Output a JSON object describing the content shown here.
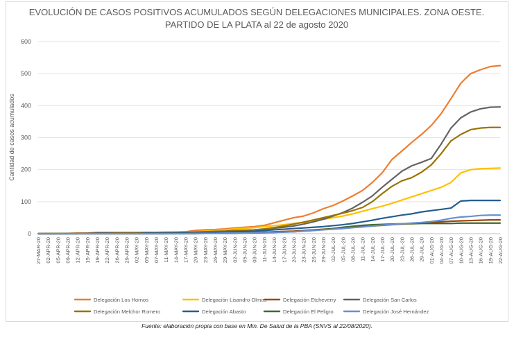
{
  "chart_data": {
    "type": "line",
    "title_lines": [
      "EVOLUCIÓN DE CASOS POSITIVOS ACUMULADOS SEGÚN DELEGACIONES MUNICIPALES. ZONA OESTE.",
      "PARTIDO DE LA PLATA al 22 de agosto 2020"
    ],
    "ylabel": "Cantidad de casos acumulados",
    "ylim": [
      0,
      600
    ],
    "yticks": [
      0,
      100,
      200,
      300,
      400,
      500,
      600
    ],
    "grid": "horizontal",
    "legend_position": "bottom",
    "x": [
      "27-MAR-20",
      "02-APR-20",
      "05-APR-20",
      "09-APR-20",
      "12-APR-20",
      "15-APR-20",
      "19-APR-20",
      "22-APR-20",
      "26-APR-20",
      "29-APR-20",
      "02-MAY-20",
      "05-MAY-20",
      "07-MAY-20",
      "11-MAY-20",
      "14-MAY-20",
      "17-MAY-20",
      "20-MAY-20",
      "23-MAY-20",
      "26-MAY-20",
      "29-MAY-20",
      "02-JUN-20",
      "05-JUN-20",
      "08-JUN-20",
      "11-JUN-20",
      "14-JUN-20",
      "17-JUN-20",
      "20-JUN-20",
      "23-JUN-20",
      "26-JUN-20",
      "29-JUN-20",
      "02-JUL-20",
      "05-JUL-20",
      "08-JUL-20",
      "11-JUL-20",
      "14-JUL-20",
      "17-JUL-20",
      "20-JUL-20",
      "23-JUL-20",
      "26-JUL-20",
      "29-JUL-20",
      "01-AUG-20",
      "04-AUG-20",
      "07-AUG-20",
      "10-AUG-20",
      "13-AUG-20",
      "16-AUG-20",
      "19-AUG-20",
      "22-AUG-20"
    ],
    "series": [
      {
        "name": "Delegación Los Hornos",
        "color": "#ed7d31",
        "values": [
          0,
          1,
          1,
          1,
          2,
          2,
          4,
          4,
          4,
          4,
          4,
          4,
          4,
          5,
          5,
          6,
          10,
          12,
          13,
          15,
          18,
          20,
          22,
          26,
          34,
          42,
          50,
          55,
          65,
          78,
          88,
          102,
          118,
          135,
          160,
          190,
          232,
          258,
          285,
          310,
          338,
          375,
          422,
          470,
          500,
          512,
          522,
          525
        ]
      },
      {
        "name": "Delegación Lisandro Olmos",
        "color": "#ffc000",
        "values": [
          0,
          0,
          0,
          1,
          1,
          1,
          1,
          2,
          2,
          2,
          2,
          2,
          2,
          3,
          3,
          4,
          6,
          8,
          10,
          12,
          15,
          17,
          19,
          22,
          25,
          28,
          32,
          35,
          40,
          45,
          50,
          55,
          62,
          70,
          78,
          86,
          95,
          105,
          115,
          125,
          135,
          145,
          160,
          190,
          200,
          203,
          204,
          205
        ]
      },
      {
        "name": "Delegación Etcheverry",
        "color": "#9e480e",
        "values": [
          0,
          0,
          0,
          0,
          0,
          0,
          0,
          0,
          0,
          0,
          0,
          0,
          0,
          0,
          1,
          1,
          1,
          2,
          2,
          2,
          3,
          3,
          4,
          5,
          6,
          7,
          8,
          10,
          12,
          14,
          16,
          18,
          20,
          22,
          24,
          26,
          28,
          30,
          32,
          33,
          35,
          37,
          39,
          40,
          41,
          42,
          43,
          43
        ]
      },
      {
        "name": "Delegación San Carlos",
        "color": "#636363",
        "values": [
          0,
          0,
          0,
          1,
          1,
          1,
          2,
          2,
          2,
          2,
          2,
          3,
          3,
          3,
          4,
          4,
          5,
          6,
          7,
          8,
          10,
          11,
          12,
          14,
          17,
          20,
          24,
          30,
          37,
          45,
          55,
          66,
          80,
          98,
          118,
          145,
          170,
          195,
          212,
          223,
          235,
          280,
          330,
          362,
          380,
          390,
          395,
          396
        ]
      },
      {
        "name": "Delegación Melchor Romero",
        "color": "#997300",
        "values": [
          0,
          0,
          0,
          0,
          1,
          1,
          1,
          1,
          2,
          2,
          2,
          2,
          2,
          3,
          3,
          3,
          4,
          5,
          6,
          7,
          8,
          10,
          12,
          15,
          19,
          24,
          30,
          36,
          43,
          50,
          57,
          64,
          72,
          82,
          100,
          125,
          148,
          165,
          175,
          192,
          215,
          250,
          290,
          310,
          325,
          330,
          332,
          332
        ]
      },
      {
        "name": "Delegación Abasto",
        "color": "#255e91",
        "values": [
          0,
          0,
          0,
          0,
          0,
          1,
          1,
          1,
          1,
          1,
          1,
          2,
          2,
          2,
          2,
          2,
          3,
          3,
          4,
          5,
          6,
          7,
          8,
          10,
          12,
          14,
          16,
          18,
          20,
          22,
          25,
          28,
          32,
          37,
          42,
          48,
          53,
          58,
          62,
          68,
          72,
          76,
          80,
          102,
          104,
          104,
          104,
          104
        ]
      },
      {
        "name": "Delegación El Peligro",
        "color": "#43682b",
        "values": [
          0,
          0,
          0,
          0,
          0,
          0,
          0,
          0,
          0,
          0,
          0,
          0,
          0,
          0,
          0,
          0,
          0,
          1,
          1,
          1,
          1,
          2,
          2,
          3,
          4,
          5,
          6,
          8,
          10,
          13,
          16,
          20,
          23,
          26,
          28,
          29,
          30,
          31,
          31,
          32,
          32,
          32,
          32,
          33,
          33,
          33,
          33,
          33
        ]
      },
      {
        "name": "Delegación José Hernández",
        "color": "#698ed0",
        "values": [
          0,
          0,
          0,
          0,
          0,
          0,
          0,
          0,
          0,
          0,
          0,
          0,
          0,
          0,
          0,
          0,
          1,
          1,
          1,
          2,
          2,
          2,
          3,
          3,
          4,
          5,
          6,
          8,
          10,
          12,
          14,
          16,
          19,
          21,
          24,
          27,
          29,
          31,
          33,
          35,
          38,
          42,
          48,
          52,
          54,
          57,
          58,
          58
        ]
      }
    ]
  },
  "source_note": "Fuente: elaboración propia con base en Min. De Salud de la PBA (SNVS al 22/08/2020)."
}
